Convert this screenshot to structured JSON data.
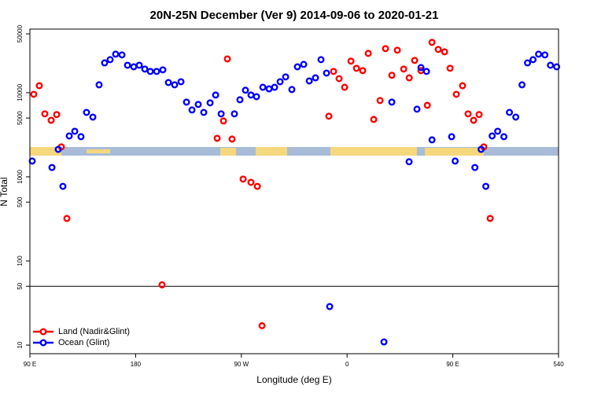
{
  "chart_data": {
    "type": "scatter",
    "title": "20N-25N December (Ver 9)   2014-09-06 to 2020-01-21",
    "x_label": "Longitude (deg E)",
    "y_label": "N Total",
    "log_y": true,
    "legend": "lower left",
    "hline": 50,
    "xlim": [
      90,
      540
    ],
    "xticks": [
      {
        "value": 90,
        "label": "90 E"
      },
      180,
      {
        "value": 270,
        "label": "90 W"
      },
      {
        "value": 360,
        "label": "0"
      },
      {
        "value": 450,
        "label": "90 E"
      },
      540
    ],
    "ylim": [
      7.9,
      57000
    ],
    "yticks": [
      10,
      50,
      100,
      500,
      1000,
      5000,
      10000,
      50000
    ],
    "series": [
      {
        "name": "Land (Nadir&Glint)",
        "color": "#ff0000",
        "x": [
          93.3,
          98.0,
          102.7,
          108.1,
          112.8,
          116.8,
          121.5,
          202.5,
          249.4,
          254.8,
          258.1,
          262.1,
          271.5,
          278.2,
          283.6,
          287.6,
          344.5,
          348.5,
          353.2,
          357.9,
          363.3,
          368.0,
          373.3,
          378.0,
          382.7,
          388.1,
          392.7,
          398.1,
          402.8,
          408.2,
          412.9,
          417.5,
          422.9,
          428.3,
          432.3,
          437.6,
          443.0,
          447.7,
          453.0,
          458.3,
          463.0,
          467.7,
          472.4,
          476.4,
          481.8
        ],
        "values": [
          9570,
          12100,
          5600,
          4700,
          5500,
          2270,
          320,
          52,
          2870,
          4610,
          25200,
          2810,
          940,
          860,
          770,
          17,
          5250,
          17900,
          14700,
          11600,
          23700,
          19500,
          18300,
          29300,
          4810,
          8070,
          33400,
          16100,
          32000,
          19100,
          15000,
          24200,
          18300,
          7080,
          39600,
          32700,
          30600,
          19500,
          9570,
          12100,
          5600,
          4700,
          5500,
          2270,
          320
        ]
      },
      {
        "name": "Ocean (Glint)",
        "color": "#0000ff",
        "x": [
          92.0,
          108.8,
          114.1,
          118.1,
          123.5,
          128.2,
          133.5,
          138.2,
          143.6,
          148.9,
          153.6,
          158.3,
          163.0,
          168.4,
          173.1,
          178.4,
          183.1,
          187.8,
          192.5,
          197.9,
          203.2,
          207.9,
          213.2,
          218.6,
          223.3,
          228.0,
          233.3,
          238.0,
          243.4,
          248.1,
          252.8,
          264.1,
          268.8,
          273.5,
          278.2,
          282.9,
          288.3,
          293.6,
          298.3,
          303.0,
          307.7,
          313.0,
          317.7,
          323.1,
          327.8,
          333.1,
          337.8,
          342.5,
          345.2,
          391.4,
          398.1,
          412.8,
          419.5,
          422.9,
          427.6,
          432.3,
          449.0,
          452.0,
          468.8,
          474.1,
          478.1,
          483.5,
          488.2,
          493.5,
          498.2,
          503.6,
          508.9,
          513.6,
          518.3,
          523.0,
          528.4,
          533.1,
          538.4
        ],
        "values": [
          1540,
          1290,
          2120,
          770,
          3060,
          3480,
          3000,
          5830,
          5130,
          12400,
          22600,
          24700,
          28700,
          28100,
          21200,
          20300,
          21200,
          19100,
          17900,
          17900,
          18700,
          13200,
          12400,
          13500,
          7730,
          6230,
          7250,
          5830,
          7570,
          9370,
          5600,
          5600,
          8240,
          10700,
          9370,
          8970,
          11600,
          11100,
          11600,
          13500,
          15400,
          10900,
          20300,
          21700,
          13800,
          15000,
          24700,
          17100,
          28.7,
          10.9,
          7730,
          1510,
          6370,
          19900,
          17900,
          2750,
          3000,
          1540,
          1290,
          2120,
          770,
          3060,
          3480,
          3000,
          5830,
          5130,
          12400,
          22600,
          24700,
          28700,
          28100,
          21200,
          20300
        ]
      }
    ]
  }
}
